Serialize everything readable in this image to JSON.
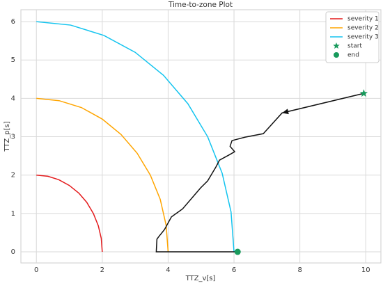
{
  "chart_data": {
    "type": "line",
    "title": "Time-to-zone Plot",
    "x_label": "TTZ_v[s]",
    "y_label": "TTZ_p[s]",
    "xlim": [
      -0.47,
      10.46
    ],
    "ylim": [
      -0.29,
      6.31
    ],
    "xticks": [
      0,
      2,
      4,
      6,
      8,
      10
    ],
    "yticks": [
      0,
      1,
      2,
      3,
      4,
      5,
      6
    ],
    "grid": true,
    "legend": "upper right",
    "series": [
      {
        "name": "severity 1",
        "color": "#e41a1c",
        "marker": "line",
        "x": [
          0,
          0.35,
          0.68,
          1,
          1.29,
          1.53,
          1.73,
          1.88,
          1.97,
          2
        ],
        "values": [
          2,
          1.97,
          1.88,
          1.73,
          1.53,
          1.29,
          1,
          0.68,
          0.35,
          0
        ]
      },
      {
        "name": "severity 2",
        "color": "#ffa500",
        "marker": "line",
        "x": [
          0,
          0.69,
          1.37,
          2,
          2.57,
          3.06,
          3.46,
          3.76,
          3.94,
          4
        ],
        "values": [
          4,
          3.94,
          3.76,
          3.46,
          3.06,
          2.57,
          2,
          1.37,
          0.69,
          0
        ]
      },
      {
        "name": "severity 3",
        "color": "#13c4ef",
        "marker": "line",
        "x": [
          0,
          1.04,
          2.05,
          3,
          3.86,
          4.6,
          5.2,
          5.64,
          5.91,
          6
        ],
        "values": [
          6,
          5.91,
          5.64,
          5.2,
          4.6,
          3.86,
          3,
          2.05,
          1.04,
          0
        ]
      },
      {
        "name": "start",
        "color": "#189a5c",
        "marker": "star",
        "x": [
          9.94
        ],
        "values": [
          4.13
        ]
      },
      {
        "name": "end",
        "color": "#189a5c",
        "marker": "circle",
        "x": [
          6.11
        ],
        "values": [
          0
        ]
      }
    ],
    "trajectory": {
      "color": "#111111",
      "x": [
        9.94,
        7.46,
        6.89,
        6.34,
        5.94,
        5.88,
        6.02,
        5.88,
        5.56,
        5.45,
        5.2,
        4.99,
        4.44,
        4.1,
        3.89,
        3.72,
        3.66,
        3.64,
        6.11
      ],
      "values": [
        4.13,
        3.62,
        3.08,
        2.99,
        2.9,
        2.75,
        2.61,
        2.54,
        2.39,
        2.21,
        1.85,
        1.67,
        1.12,
        0.91,
        0.58,
        0.4,
        0.33,
        0,
        0
      ]
    }
  }
}
